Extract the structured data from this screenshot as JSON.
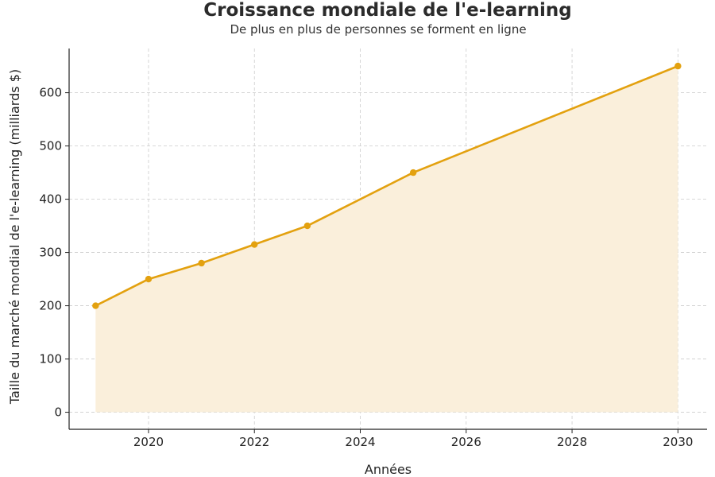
{
  "chart_data": {
    "type": "area",
    "title": "Croissance mondiale de l'e-learning",
    "subtitle": "De plus en plus de personnes se forment en ligne",
    "xlabel": "Années",
    "ylabel": "Taille du marché mondial de l'e-learning (milliards $)",
    "x": [
      2019,
      2020,
      2021,
      2022,
      2023,
      2025,
      2030
    ],
    "y": [
      200,
      250,
      280,
      315,
      350,
      450,
      650
    ],
    "xlim": [
      2018.5,
      2030.55
    ],
    "ylim": [
      -32,
      683
    ],
    "xticks": [
      2020,
      2022,
      2024,
      2026,
      2028,
      2030
    ],
    "yticks": [
      0,
      100,
      200,
      300,
      400,
      500,
      600
    ],
    "grid": true,
    "line_color": "#e3a10f",
    "fill_color": "#faefdb",
    "grid_color": "#cccccc"
  }
}
